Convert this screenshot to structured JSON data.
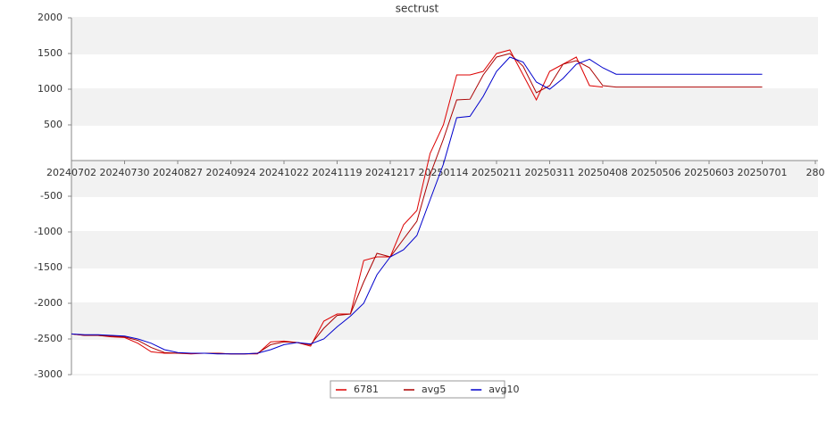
{
  "chart_data": {
    "type": "line",
    "title": "sectrust",
    "x": [
      "20240702",
      "20240709",
      "20240716",
      "20240723",
      "20240730",
      "20240806",
      "20240813",
      "20240820",
      "20240827",
      "20240903",
      "20240910",
      "20240917",
      "20240924",
      "20241001",
      "20241008",
      "20241015",
      "20241022",
      "20241029",
      "20241105",
      "20241112",
      "20241119",
      "20241126",
      "20241203",
      "20241210",
      "20241217",
      "20241224",
      "20241231",
      "20250107",
      "20250114",
      "20250121",
      "20250128",
      "20250204",
      "20250211",
      "20250218",
      "20250225",
      "20250304",
      "20250311",
      "20250318",
      "20250325",
      "20250401",
      "20250408",
      "20250415",
      "20250422",
      "20250429",
      "20250506",
      "20250513",
      "20250520",
      "20250527",
      "20250603",
      "20250610",
      "20250617",
      "20250624",
      "20250701"
    ],
    "series": [
      {
        "name": "6781",
        "color": "#dd0000",
        "values": [
          -2430,
          -2450,
          -2450,
          -2470,
          -2480,
          -2560,
          -2680,
          -2700,
          -2700,
          -2710,
          -2700,
          -2700,
          -2710,
          -2710,
          -2710,
          -2540,
          -2530,
          -2550,
          -2600,
          -2250,
          -2150,
          -2150,
          -1400,
          -1350,
          -1350,
          -900,
          -700,
          100,
          500,
          1200,
          1200,
          1250,
          1500,
          1550,
          1200,
          850,
          1250,
          1350,
          1450,
          1050,
          1030,
          null,
          null,
          null,
          null,
          null,
          null,
          null,
          null,
          null,
          null,
          null,
          null
        ]
      },
      {
        "name": "avg5",
        "color": "#aa0000",
        "values": [
          -2430,
          -2450,
          -2450,
          -2460,
          -2470,
          -2520,
          -2620,
          -2690,
          -2700,
          -2700,
          -2700,
          -2700,
          -2710,
          -2710,
          -2700,
          -2580,
          -2540,
          -2550,
          -2580,
          -2350,
          -2170,
          -2150,
          -1700,
          -1300,
          -1350,
          -1100,
          -850,
          -200,
          300,
          850,
          860,
          1200,
          1450,
          1500,
          1320,
          950,
          1050,
          1350,
          1400,
          1300,
          1050,
          1030,
          1030,
          1030,
          1030,
          1030,
          1030,
          1030,
          1030,
          1030,
          1030,
          1030,
          1030
        ]
      },
      {
        "name": "avg10",
        "color": "#0000cc",
        "values": [
          -2430,
          -2440,
          -2440,
          -2450,
          -2460,
          -2500,
          -2560,
          -2650,
          -2690,
          -2700,
          -2700,
          -2710,
          -2710,
          -2710,
          -2700,
          -2650,
          -2580,
          -2550,
          -2570,
          -2500,
          -2330,
          -2180,
          -2000,
          -1600,
          -1350,
          -1250,
          -1050,
          -550,
          -50,
          600,
          620,
          900,
          1250,
          1450,
          1380,
          1100,
          1000,
          1150,
          1350,
          1420,
          1300,
          1210,
          1210,
          1210,
          1210,
          1210,
          1210,
          1210,
          1210,
          1210,
          1210,
          1210,
          1210
        ]
      }
    ],
    "xlim": [
      "20240702",
      "20250729"
    ],
    "xticks": [
      "20240702",
      "20240730",
      "20240827",
      "20240924",
      "20241022",
      "20241119",
      "20241217",
      "20250114",
      "20250211",
      "20250311",
      "20250408",
      "20250506",
      "20250603",
      "20250701",
      {
        "value": "20250729",
        "label": "280"
      }
    ],
    "ylim": [
      -3000,
      2000
    ],
    "yticks": [
      2000,
      1500,
      1000,
      500,
      -500,
      -1000,
      -1500,
      -2000,
      -2500,
      -3000
    ],
    "grid": true
  }
}
